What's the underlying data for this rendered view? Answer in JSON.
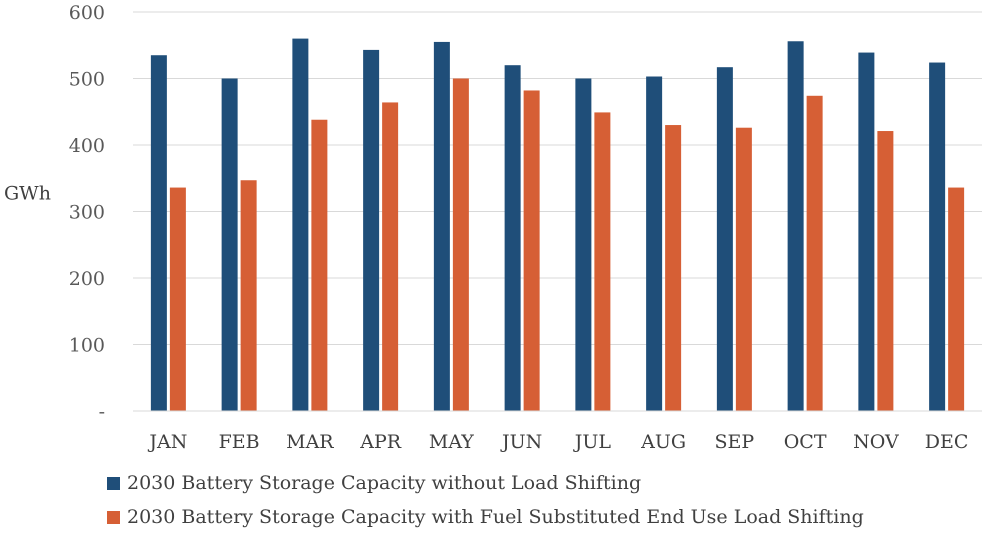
{
  "chart_data": {
    "type": "bar",
    "title": "",
    "xlabel": "",
    "ylabel": "GWh",
    "ylim": [
      0,
      600
    ],
    "yticks": [
      {
        "value": 0,
        "label": "-"
      },
      {
        "value": 100,
        "label": "100"
      },
      {
        "value": 200,
        "label": "200"
      },
      {
        "value": 300,
        "label": "300"
      },
      {
        "value": 400,
        "label": "400"
      },
      {
        "value": 500,
        "label": "500"
      },
      {
        "value": 600,
        "label": "600"
      }
    ],
    "grid": true,
    "legend_position": "bottom",
    "categories": [
      "JAN",
      "FEB",
      "MAR",
      "APR",
      "MAY",
      "JUN",
      "JUL",
      "AUG",
      "SEP",
      "OCT",
      "NOV",
      "DEC"
    ],
    "series": [
      {
        "name": "2030 Battery Storage Capacity without Load Shifting",
        "color": "#1f4e79",
        "values": [
          535,
          500,
          560,
          543,
          555,
          520,
          500,
          503,
          517,
          556,
          539,
          524
        ]
      },
      {
        "name": "2030 Battery Storage Capacity with Fuel Substituted End Use Load Shifting",
        "color": "#d65f35",
        "values": [
          336,
          347,
          438,
          464,
          500,
          482,
          449,
          430,
          426,
          474,
          421,
          336
        ]
      }
    ]
  }
}
